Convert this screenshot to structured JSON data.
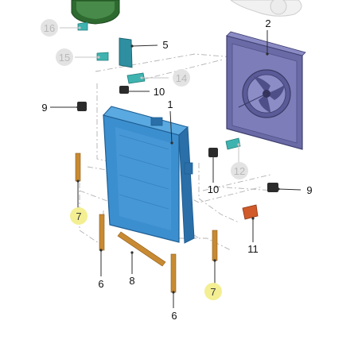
{
  "diagram": {
    "callouts": [
      {
        "id": "c16",
        "text": "16",
        "style": "dim"
      },
      {
        "id": "c15",
        "text": "15",
        "style": "dim"
      },
      {
        "id": "c5",
        "text": "5",
        "style": "normal"
      },
      {
        "id": "c2",
        "text": "2",
        "style": "normal"
      },
      {
        "id": "c14",
        "text": "14",
        "style": "dim"
      },
      {
        "id": "c10a",
        "text": "10",
        "style": "normal"
      },
      {
        "id": "c9a",
        "text": "9",
        "style": "normal"
      },
      {
        "id": "c1",
        "text": "1",
        "style": "normal"
      },
      {
        "id": "c12",
        "text": "12",
        "style": "dim"
      },
      {
        "id": "c10b",
        "text": "10",
        "style": "normal"
      },
      {
        "id": "c9b",
        "text": "9",
        "style": "normal"
      },
      {
        "id": "c7a",
        "text": "7",
        "style": "highlight"
      },
      {
        "id": "c11",
        "text": "11",
        "style": "normal"
      },
      {
        "id": "c6a",
        "text": "6",
        "style": "normal"
      },
      {
        "id": "c8",
        "text": "8",
        "style": "normal"
      },
      {
        "id": "c7b",
        "text": "7",
        "style": "highlight"
      },
      {
        "id": "c6b",
        "text": "6",
        "style": "normal"
      }
    ]
  },
  "colors": {
    "radiator": "#3c8fcf",
    "radiator_dark": "#2a6fa8",
    "fan_shroud": "#6a6aa6",
    "fan_shroud_dark": "#4f4f86",
    "seal_strip": "#c88a32",
    "highlight_circle": "#f3ef92",
    "dim_circle": "#e3e3e3",
    "teal_part": "#3fb3b0",
    "mount_dark": "#2b2b2b",
    "sensor_orange": "#d05a2a",
    "reservoir": "#3c7a3c"
  }
}
